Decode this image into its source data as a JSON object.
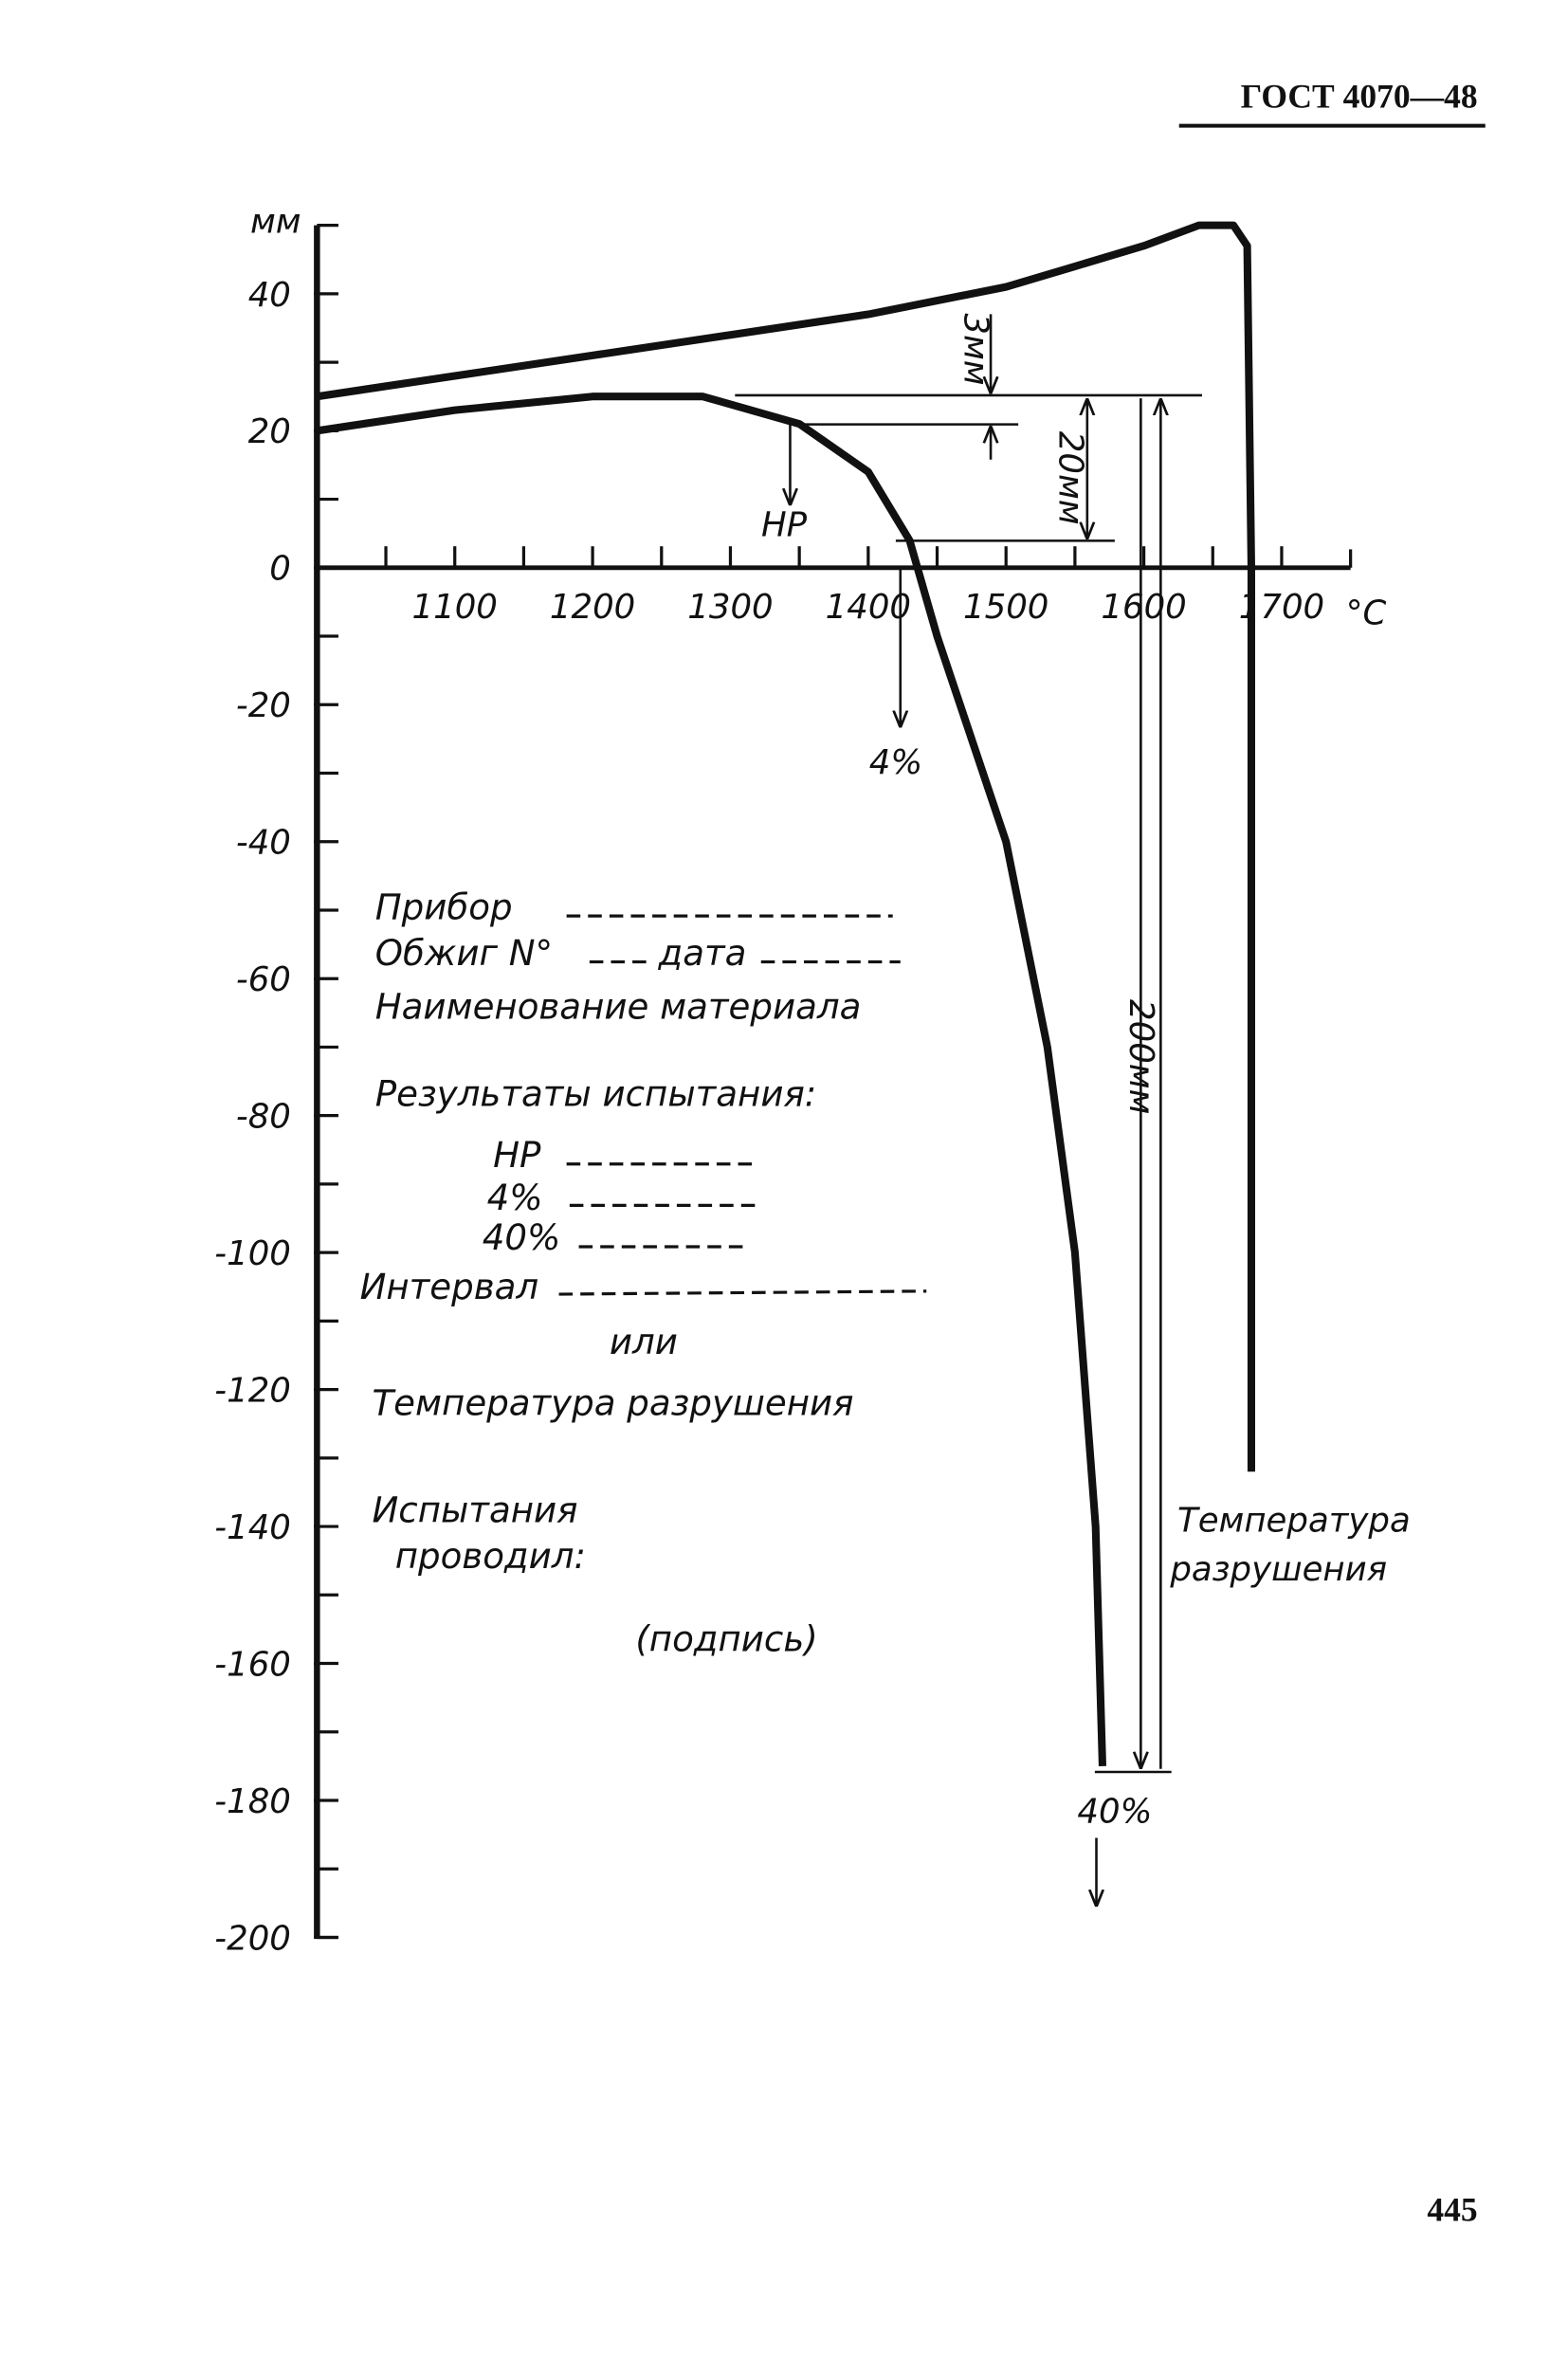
{
  "header": "ГОСТ 4070—48",
  "page_number": "445",
  "form": {
    "device": "Прибор",
    "firing": "Обжиг N°",
    "date": "дата",
    "material": "Наименование материала",
    "results": "Результаты испытания:",
    "hp": "НР",
    "p4": "4%",
    "p40": "40%",
    "interval": "Интервал",
    "or": "или",
    "destruction": "Температура разрушения",
    "tested_1": "Испытания",
    "tested_2": "проводил:",
    "signature": "(подпись)"
  },
  "chart_data": {
    "type": "line",
    "y_label": "мм",
    "x_unit": "°C",
    "xlim": [
      1000,
      1750
    ],
    "xticks": [
      1100,
      1200,
      1300,
      1400,
      1500,
      1600,
      1700
    ],
    "ylim": [
      -200,
      50
    ],
    "yticks": [
      40,
      20,
      0,
      -20,
      -40,
      -60,
      -80,
      -100,
      -120,
      -140,
      -160,
      -180,
      -200
    ],
    "series": [
      {
        "color": "#111111",
        "x": [
          1000,
          1100,
          1200,
          1300,
          1400,
          1500,
          1550,
          1600,
          1640,
          1665,
          1675,
          1678,
          1678
        ],
        "values": [
          25,
          28,
          31,
          34,
          37,
          41,
          44,
          47,
          50,
          50,
          47,
          0,
          -132
        ]
      },
      {
        "color": "#111111",
        "x": [
          1000,
          1100,
          1200,
          1280,
          1350,
          1400,
          1430,
          1450,
          1500,
          1530,
          1550,
          1565,
          1570
        ],
        "values": [
          20,
          23,
          25,
          25,
          21,
          14,
          4,
          -10,
          -40,
          -70,
          -100,
          -140,
          -175
        ]
      }
    ],
    "annotations": [
      "3мм",
      "20мм",
      "НР",
      "4%",
      "200мм",
      "Температура",
      "разрушения",
      "40%"
    ]
  }
}
